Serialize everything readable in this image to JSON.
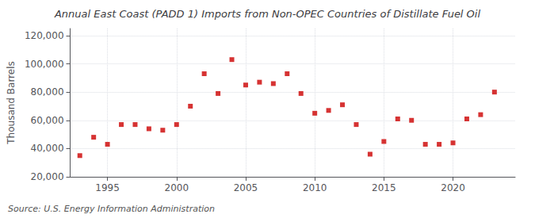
{
  "chart_data": {
    "type": "scatter",
    "title": "Annual East Coast (PADD 1) Imports from Non-OPEC Countries of Distillate Fuel Oil",
    "ylabel": "Thousand Barrels",
    "annotations": [
      "Source: U.S. Energy Information Administration"
    ],
    "color": "#cc0000",
    "marker": "square",
    "x": [
      1993,
      1994,
      1995,
      1996,
      1997,
      1998,
      1999,
      2000,
      2001,
      2002,
      2003,
      2004,
      2005,
      2006,
      2007,
      2008,
      2009,
      2010,
      2011,
      2012,
      2013,
      2014,
      2015,
      2016,
      2017,
      2018,
      2019,
      2020,
      2021,
      2022,
      2023
    ],
    "values": [
      35000,
      48000,
      43000,
      57000,
      57000,
      54000,
      53000,
      57000,
      70000,
      93000,
      79000,
      103000,
      85000,
      87000,
      86000,
      93000,
      79000,
      65000,
      67000,
      71000,
      57000,
      36000,
      45000,
      61000,
      60000,
      43000,
      43000,
      44000,
      61000,
      64000,
      80000
    ],
    "xlim": [
      1992.3,
      2024.5
    ],
    "xticks": [
      1995,
      2000,
      2005,
      2010,
      2015,
      2020
    ],
    "ylim": [
      20000,
      125000
    ],
    "yticks": [
      {
        "value": 20000,
        "label": "20,000"
      },
      {
        "value": 40000,
        "label": "40,000"
      },
      {
        "value": 60000,
        "label": "60,000"
      },
      {
        "value": 80000,
        "label": "80,000"
      },
      {
        "value": 100000,
        "label": "100,000"
      },
      {
        "value": 120000,
        "label": "120,000"
      }
    ],
    "grid": true
  }
}
